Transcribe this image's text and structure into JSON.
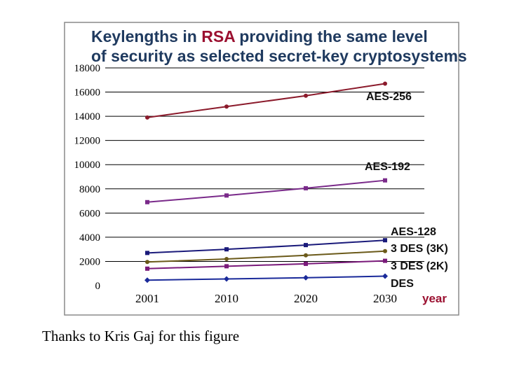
{
  "chart_data": {
    "type": "line",
    "title_lines": [
      [
        "Keylengths in ",
        "RSA",
        " providing the same level"
      ],
      [
        "of security as selected secret-key cryptosystems"
      ]
    ],
    "title_line1_parts": {
      "before": "Keylengths in ",
      "highlight": "RSA",
      "after": " providing the same level"
    },
    "title_line2": "of security as selected secret-key cryptosystems",
    "x": [
      2001,
      2010,
      2020,
      2030
    ],
    "x_tick_labels": [
      "2001",
      "2010",
      "2020",
      "2030"
    ],
    "xlabel": "year",
    "ylabel": "",
    "ylim": [
      0,
      18000
    ],
    "y_ticks": [
      0,
      2000,
      4000,
      6000,
      8000,
      10000,
      12000,
      14000,
      16000,
      18000
    ],
    "grid": "horizontal",
    "series": [
      {
        "name": "AES-256",
        "values": [
          13900,
          14800,
          15700,
          16700
        ],
        "color": "#8b1a2b",
        "marker": "circle"
      },
      {
        "name": "AES-192",
        "values": [
          6900,
          7450,
          8050,
          8700
        ],
        "color": "#7a2a8a",
        "marker": "square"
      },
      {
        "name": "AES-128",
        "values": [
          2700,
          3000,
          3350,
          3750
        ],
        "color": "#1a1a7a",
        "marker": "square"
      },
      {
        "name": "3 DES (3K)",
        "values": [
          1950,
          2200,
          2500,
          2850
        ],
        "color": "#6b5a1a",
        "marker": "circle"
      },
      {
        "name": "3 DES (2K)",
        "values": [
          1400,
          1600,
          1800,
          2050
        ],
        "color": "#7a1a7a",
        "marker": "square"
      },
      {
        "name": "DES",
        "values": [
          450,
          550,
          650,
          780
        ],
        "color": "#1a2a9a",
        "marker": "diamond"
      }
    ],
    "colors": {
      "axis_label": "#9b1030",
      "title": "#1f3a5f",
      "frame": "#888888"
    }
  },
  "caption": "Thanks to Kris Gaj for this figure"
}
